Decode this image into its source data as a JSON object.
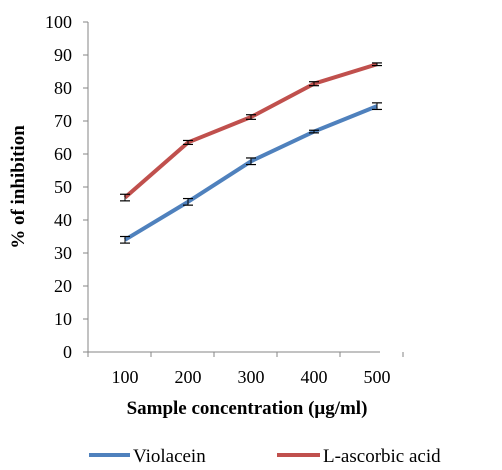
{
  "chart_data": {
    "type": "line",
    "x": [
      100,
      200,
      300,
      400,
      500
    ],
    "x_tick_labels": [
      "100",
      "200",
      "300",
      "400",
      "500"
    ],
    "xlabel": "Sample concentration (μg/ml)",
    "ylabel": "% of inhibition",
    "ylim": [
      0,
      100
    ],
    "y_ticks": [
      0,
      10,
      20,
      30,
      40,
      50,
      60,
      70,
      80,
      90,
      100
    ],
    "grid": false,
    "legend_position": "bottom",
    "series": [
      {
        "name": "Violacein",
        "color": "#4f81bd",
        "values": [
          34,
          45.5,
          57.8,
          66.8,
          74.5
        ],
        "error": [
          1.0,
          1.0,
          1.0,
          0.4,
          1.0
        ]
      },
      {
        "name": "L-ascorbic acid",
        "color": "#c0504d",
        "values": [
          46.8,
          63.5,
          71.2,
          81.3,
          87.2
        ],
        "error": [
          1.0,
          0.6,
          0.7,
          0.6,
          0.4
        ]
      }
    ]
  }
}
